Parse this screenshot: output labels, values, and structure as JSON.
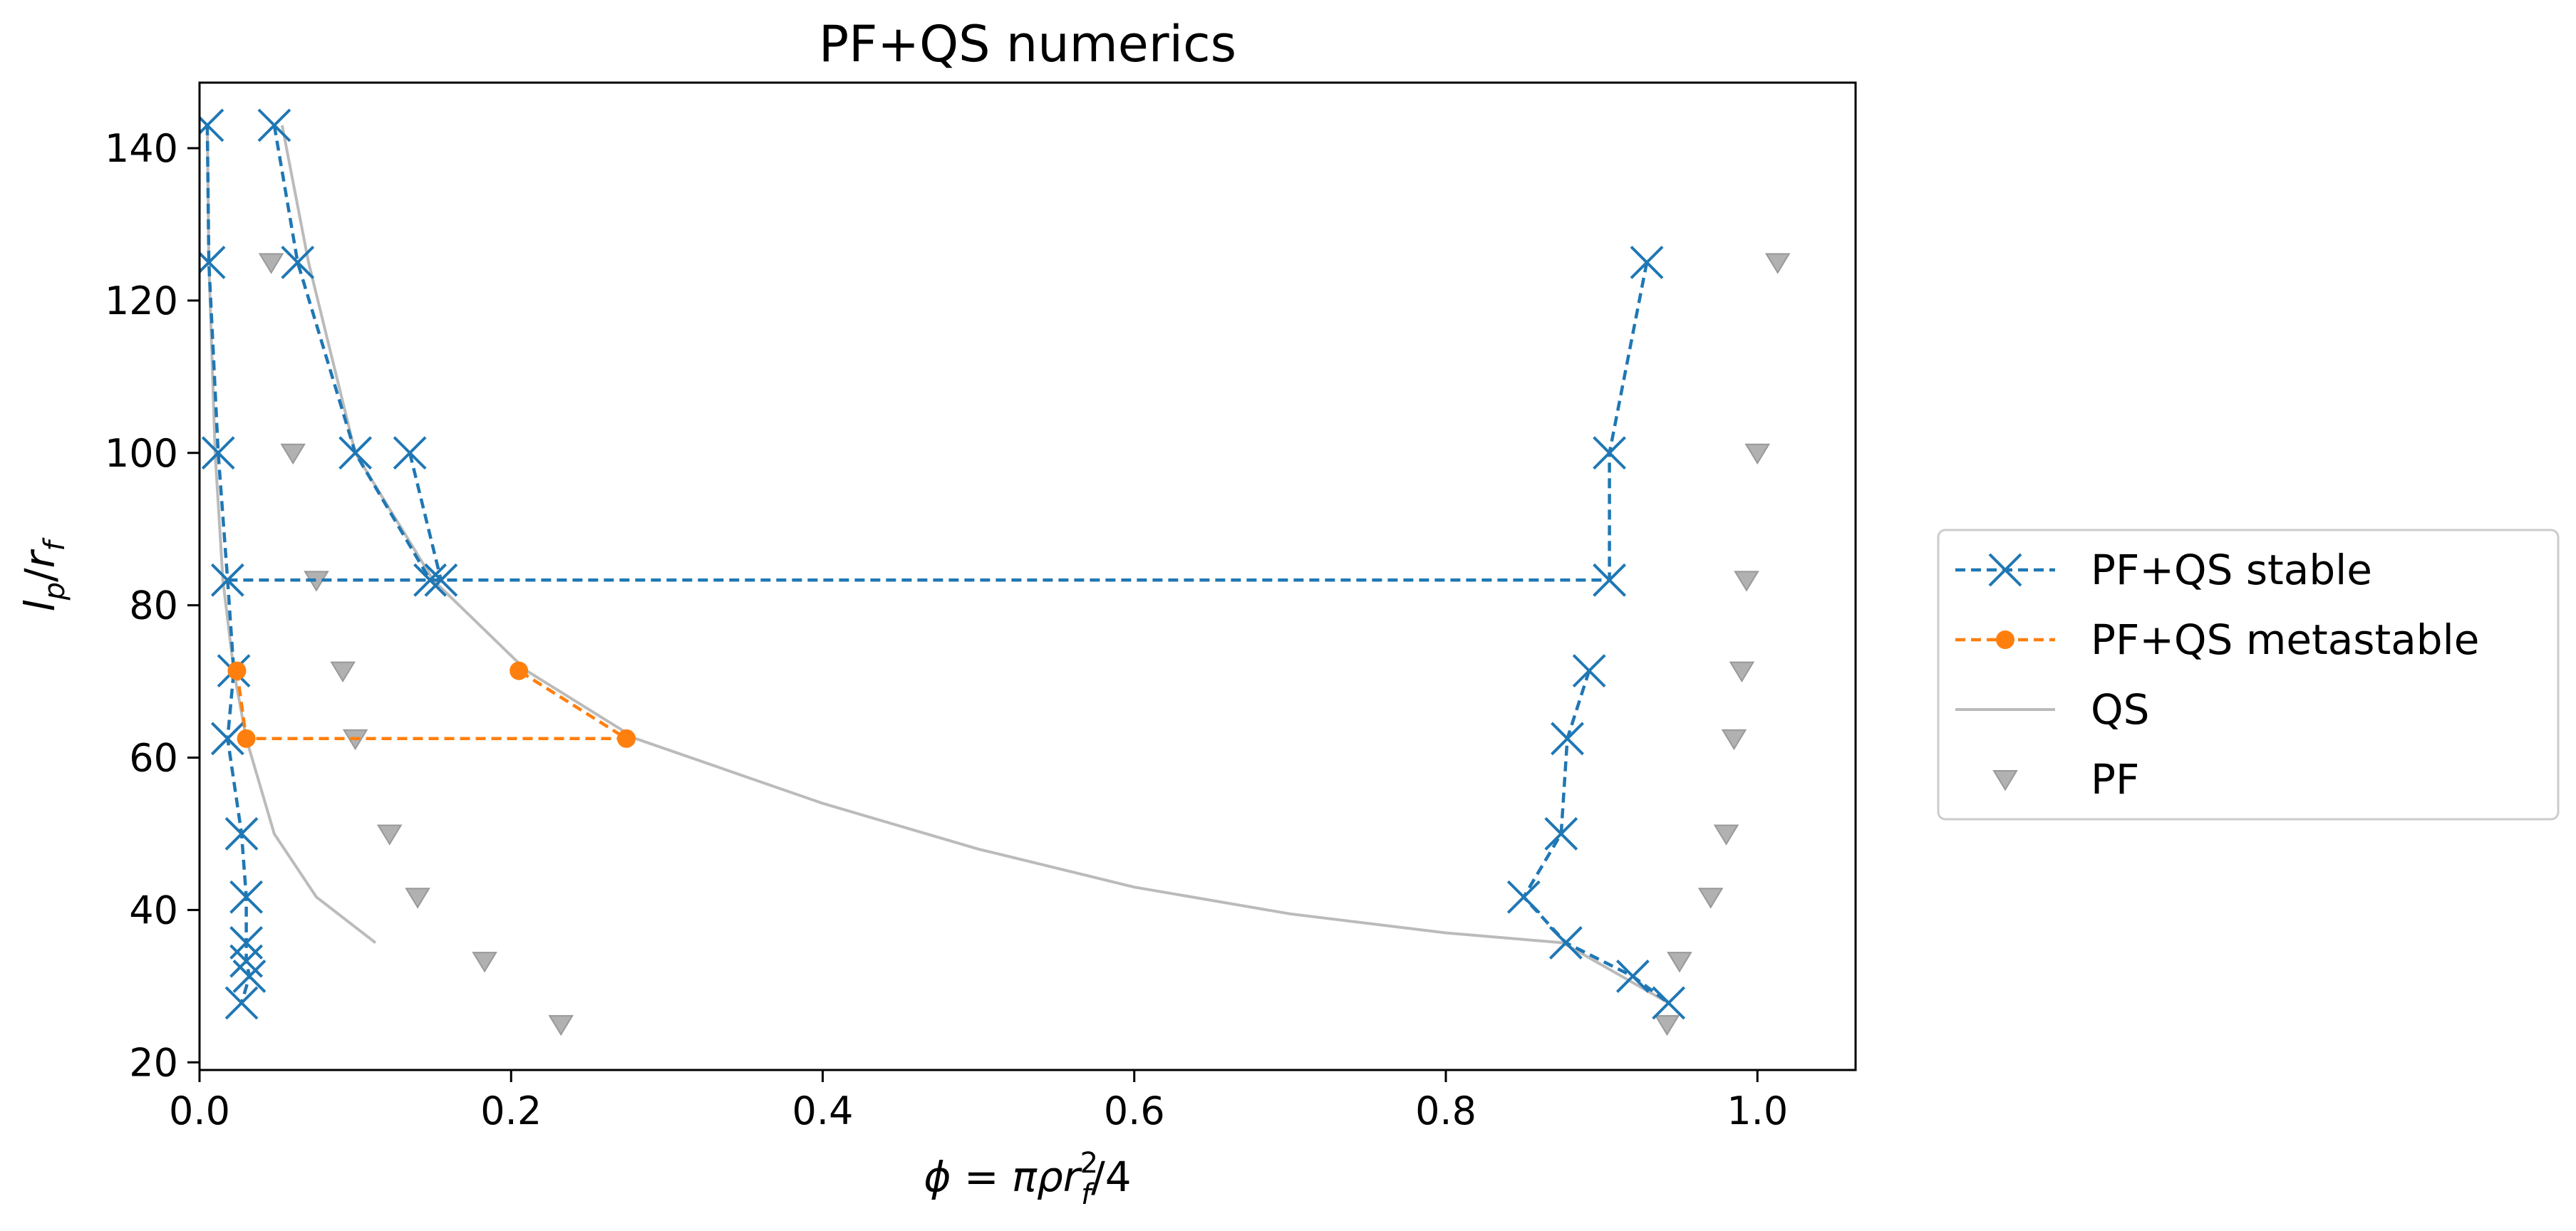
{
  "chart_data": {
    "type": "scatter",
    "title": "PF+QS numerics",
    "xlabel": "ϕ = πρr_f²/4",
    "ylabel": "l_p/r_f",
    "xlim": [
      0.0,
      1.063
    ],
    "ylim": [
      19.0,
      148.6
    ],
    "xticks": [
      0.0,
      0.2,
      0.4,
      0.6,
      0.8,
      1.0
    ],
    "xtick_labels": [
      "0.0",
      "0.2",
      "0.4",
      "0.6",
      "0.8",
      "1.0"
    ],
    "yticks": [
      20,
      40,
      60,
      80,
      100,
      120,
      140
    ],
    "ytick_labels": [
      "20",
      "40",
      "60",
      "80",
      "100",
      "120",
      "140"
    ],
    "grid": false,
    "legend_position": "right, outside plot",
    "colors": {
      "stable": "#1f77b4",
      "metastable": "#ff7f0e",
      "qs": "#bbbbbb",
      "pf": "#a9a9a9"
    },
    "series": [
      {
        "name": "PF+QS stable",
        "style": "dashed line with x markers",
        "segments": [
          [
            [
              0.005,
              143
            ],
            [
              0.006,
              125
            ],
            [
              0.012,
              100
            ],
            [
              0.018,
              83.3
            ],
            [
              0.022,
              71.4
            ],
            [
              0.018,
              62.5
            ],
            [
              0.027,
              50
            ],
            [
              0.03,
              41.7
            ],
            [
              0.03,
              35.7
            ],
            [
              0.03,
              33.3
            ],
            [
              0.032,
              31.3
            ],
            [
              0.027,
              27.8
            ]
          ],
          [
            [
              0.048,
              143
            ],
            [
              0.063,
              125
            ],
            [
              0.1,
              100
            ],
            [
              0.148,
              83.3
            ]
          ],
          [
            [
              0.135,
              100
            ],
            [
              0.155,
              83.3
            ]
          ],
          [
            [
              0.018,
              83.3
            ],
            [
              0.905,
              83.3
            ]
          ],
          [
            [
              0.929,
              125
            ],
            [
              0.905,
              100
            ],
            [
              0.905,
              83.3
            ]
          ],
          [
            [
              0.892,
              71.4
            ],
            [
              0.878,
              62.5
            ],
            [
              0.874,
              50
            ],
            [
              0.85,
              41.7
            ],
            [
              0.877,
              35.7
            ],
            [
              0.92,
              31.3
            ],
            [
              0.943,
              27.8
            ]
          ]
        ]
      },
      {
        "name": "PF+QS metastable",
        "style": "dashed line with circle markers",
        "segments": [
          [
            [
              0.024,
              71.4
            ],
            [
              0.03,
              62.5
            ],
            [
              0.274,
              62.5
            ],
            [
              0.205,
              71.4
            ]
          ]
        ]
      },
      {
        "name": "QS",
        "style": "solid line",
        "segments": [
          [
            [
              0.005,
              143
            ],
            [
              0.006,
              125
            ],
            [
              0.01,
              100
            ],
            [
              0.015,
              83.3
            ],
            [
              0.022,
              71.4
            ],
            [
              0.03,
              62.5
            ],
            [
              0.048,
              50
            ],
            [
              0.075,
              41.7
            ],
            [
              0.113,
              35.7
            ]
          ],
          [
            [
              0.053,
              143
            ],
            [
              0.07,
              125
            ],
            [
              0.1,
              100
            ],
            [
              0.15,
              83.3
            ],
            [
              0.21,
              71.4
            ],
            [
              0.28,
              62.5
            ],
            [
              0.4,
              54
            ],
            [
              0.5,
              48
            ],
            [
              0.6,
              43
            ],
            [
              0.7,
              39.5
            ],
            [
              0.8,
              37
            ],
            [
              0.875,
              35.7
            ],
            [
              0.943,
              27.8
            ]
          ]
        ]
      },
      {
        "name": "PF",
        "style": "triangle markers",
        "points": [
          [
            0.046,
            125
          ],
          [
            0.06,
            100
          ],
          [
            0.075,
            83.3
          ],
          [
            0.092,
            71.4
          ],
          [
            0.1,
            62.5
          ],
          [
            0.122,
            50
          ],
          [
            0.14,
            41.7
          ],
          [
            0.183,
            33.3
          ],
          [
            0.232,
            25
          ],
          [
            1.013,
            125
          ],
          [
            1.0,
            100
          ],
          [
            0.993,
            83.3
          ],
          [
            0.99,
            71.4
          ],
          [
            0.985,
            62.5
          ],
          [
            0.98,
            50
          ],
          [
            0.97,
            41.7
          ],
          [
            0.95,
            33.3
          ],
          [
            0.942,
            25
          ]
        ]
      }
    ]
  }
}
